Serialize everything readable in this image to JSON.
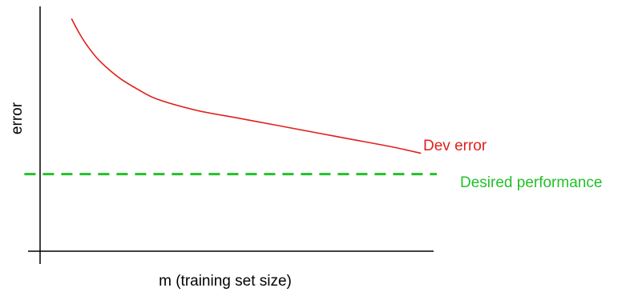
{
  "chart_data": {
    "type": "line",
    "title": "",
    "xlabel": "m (training set size)",
    "ylabel": "error",
    "xlim": [
      0,
      100
    ],
    "ylim": [
      0,
      100
    ],
    "grid": false,
    "series": [
      {
        "name": "Dev error",
        "color": "#e0201b",
        "style": "solid",
        "x": [
          8,
          10,
          12,
          15,
          20,
          25,
          30,
          40,
          50,
          60,
          70,
          80,
          90,
          97
        ],
        "y": [
          95,
          89,
          84,
          78,
          71,
          66,
          62,
          57.5,
          54.5,
          51.5,
          48.5,
          45.5,
          42.5,
          40
        ]
      },
      {
        "name": "Desired performance",
        "color": "#22c02a",
        "style": "dashed",
        "x": [
          -4,
          101
        ],
        "y": [
          31.5,
          31.5
        ]
      }
    ]
  }
}
